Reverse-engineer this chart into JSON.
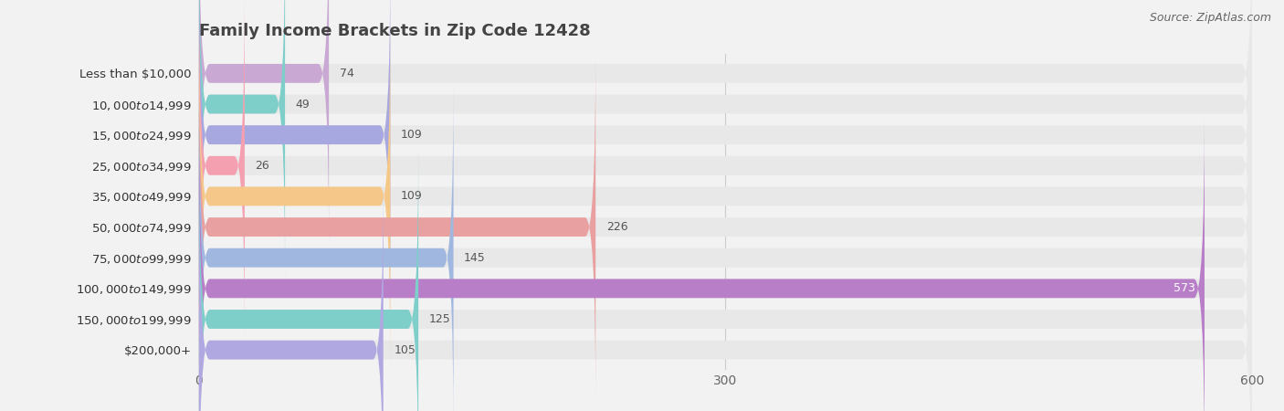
{
  "title": "Family Income Brackets in Zip Code 12428",
  "source": "Source: ZipAtlas.com",
  "categories": [
    "Less than $10,000",
    "$10,000 to $14,999",
    "$15,000 to $24,999",
    "$25,000 to $34,999",
    "$35,000 to $49,999",
    "$50,000 to $74,999",
    "$75,000 to $99,999",
    "$100,000 to $149,999",
    "$150,000 to $199,999",
    "$200,000+"
  ],
  "values": [
    74,
    49,
    109,
    26,
    109,
    226,
    145,
    573,
    125,
    105
  ],
  "bar_colors": [
    "#c9a8d4",
    "#7ececa",
    "#a8a8e0",
    "#f4a0b0",
    "#f5c88a",
    "#e8a0a0",
    "#a0b8e0",
    "#b87ec8",
    "#7ececa",
    "#b0a8e0"
  ],
  "background_color": "#f2f2f2",
  "bar_background_color": "#e8e8e8",
  "xlim": [
    0,
    600
  ],
  "xticks": [
    0,
    300,
    600
  ],
  "title_fontsize": 13,
  "label_fontsize": 9.5,
  "value_fontsize": 9.0,
  "tick_fontsize": 10
}
